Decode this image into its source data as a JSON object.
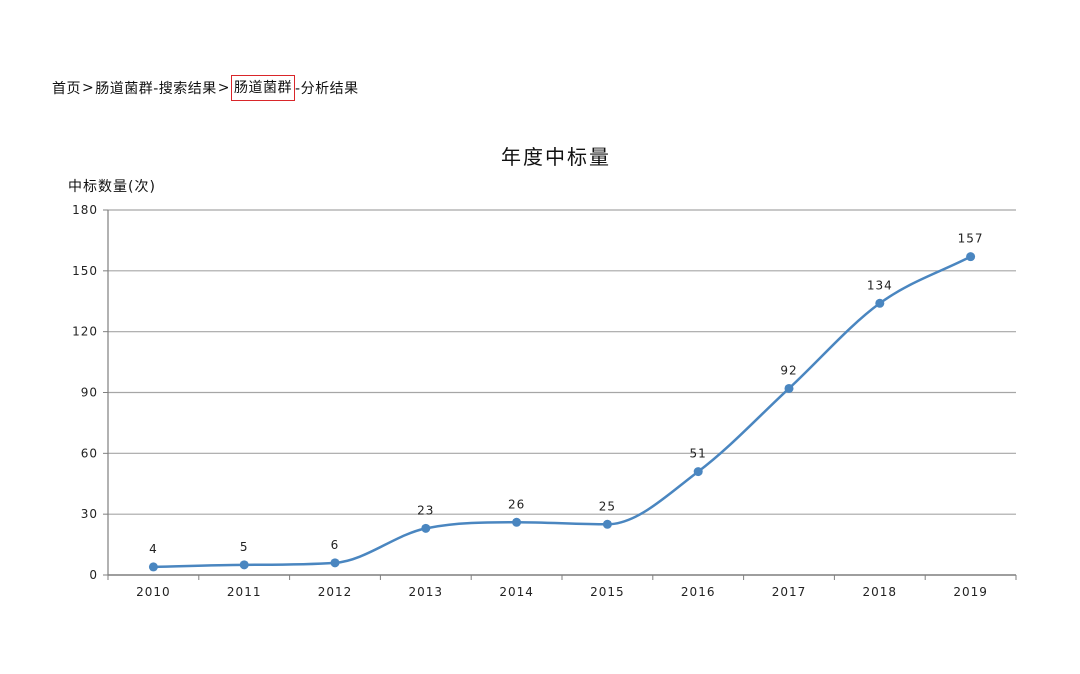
{
  "breadcrumb": {
    "home": "首页",
    "separator": ">",
    "search_result": "肠道菌群-搜索结果",
    "current": "肠道菌群",
    "suffix": "-分析结果",
    "highlight_color": "#d9262a"
  },
  "chart_data": {
    "type": "line",
    "title": "年度中标量",
    "ylabel": "中标数量(次)",
    "xlabel": "",
    "categories": [
      "2010",
      "2011",
      "2012",
      "2013",
      "2014",
      "2015",
      "2016",
      "2017",
      "2018",
      "2019"
    ],
    "series": [
      {
        "values": [
          4,
          5,
          6,
          23,
          26,
          25,
          51,
          92,
          134,
          157
        ]
      }
    ],
    "ylim": [
      0,
      180
    ],
    "yticks": [
      0,
      30,
      60,
      90,
      120,
      150,
      180
    ],
    "grid": true,
    "smooth": true,
    "data_labels": true,
    "colors": {
      "line": "#4a86c0",
      "grid": "#a6a6a6",
      "axis": "#7f7f7f"
    }
  }
}
